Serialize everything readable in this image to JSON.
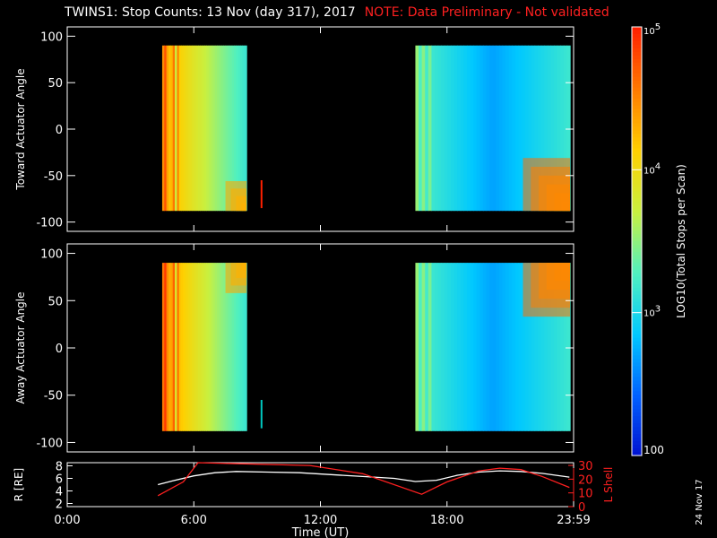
{
  "header": {
    "title": "TWINS1: Stop Counts: 13 Nov (day 317), 2017",
    "note": "NOTE: Data Preliminary - Not validated"
  },
  "side_stamp": "24 Nov 17",
  "colorbar": {
    "label": "LOG10(Total Stops per Scan)",
    "tick_labels": [
      "10^5",
      "10^4",
      "10^3",
      "100"
    ],
    "tick_values": [
      100000,
      10000,
      1000,
      100
    ],
    "scale": "log",
    "range": [
      100,
      100000
    ],
    "colormap": [
      "#0010d0",
      "#0060ff",
      "#00c8ff",
      "#50f0c0",
      "#c8f040",
      "#ffd000",
      "#ff7a00",
      "#ff2000"
    ]
  },
  "chart_data": [
    {
      "type": "heatmap",
      "ylabel": "Toward Actuator Angle",
      "ylim": [
        -110,
        110
      ],
      "yticks": [
        100,
        50,
        0,
        -50,
        -100
      ],
      "xlim_hours": [
        0,
        24
      ],
      "coverage": [
        {
          "start": "04:30",
          "end": "08:30",
          "angle_range": [
            -88,
            90
          ]
        },
        {
          "start": "16:30",
          "end": "23:50",
          "angle_range": [
            -88,
            90
          ]
        }
      ],
      "approx_counts": {
        "pass1_start": 30000,
        "pass1_end": 1500,
        "pass2_start": 2000,
        "pass2_middle": 500,
        "pass2_end_low_angle": 60000
      },
      "extra_strip": {
        "time": "09:10",
        "angle_range": [
          -85,
          -55
        ]
      }
    },
    {
      "type": "heatmap",
      "ylabel": "Away Actuator Angle",
      "ylim": [
        -110,
        110
      ],
      "yticks": [
        100,
        50,
        0,
        -50,
        -100
      ],
      "xlim_hours": [
        0,
        24
      ],
      "coverage": [
        {
          "start": "04:30",
          "end": "08:30",
          "angle_range": [
            -88,
            90
          ]
        },
        {
          "start": "16:30",
          "end": "23:50",
          "angle_range": [
            -88,
            90
          ]
        }
      ],
      "approx_counts": {
        "pass1_start": 40000,
        "pass1_end": 1500,
        "pass2_start": 2000,
        "pass2_middle": 500,
        "pass2_end_high_angle": 60000
      },
      "extra_strip": {
        "time": "09:10",
        "angle_range": [
          -85,
          -55
        ]
      }
    },
    {
      "type": "line",
      "xlabel": "Time (UT)",
      "xticks": [
        "0:00",
        "6:00",
        "12:00",
        "18:00",
        "23:59"
      ],
      "xtick_hours": [
        0,
        6,
        12,
        18,
        24
      ],
      "ylabel_left": "R [RE]",
      "ylabel_right": "L Shell",
      "yticks_left": [
        2,
        4,
        6,
        8
      ],
      "ylim_left": [
        1.5,
        8.5
      ],
      "yticks_right": [
        0,
        10,
        20,
        30
      ],
      "ylim_right": [
        0,
        32
      ],
      "series": [
        {
          "name": "R [RE]",
          "color": "#ffffff",
          "x": [
            4.3,
            5.0,
            6.0,
            7.0,
            8.0,
            9.5,
            11.0,
            12.5,
            14.0,
            15.5,
            16.5,
            17.5,
            18.5,
            19.5,
            20.5,
            21.5,
            22.5,
            23.8
          ],
          "y": [
            5.0,
            5.6,
            6.4,
            6.9,
            7.1,
            7.0,
            6.9,
            6.6,
            6.3,
            6.0,
            5.5,
            5.7,
            6.5,
            7.0,
            7.2,
            7.1,
            6.8,
            6.2
          ]
        },
        {
          "name": "L Shell",
          "color": "#ff2020",
          "x": [
            4.3,
            5.5,
            6.2,
            11.5,
            14.0,
            16.8,
            18.0,
            19.5,
            20.5,
            21.5,
            22.5,
            23.8
          ],
          "y": [
            8,
            18,
            32,
            30,
            24,
            9,
            18,
            26,
            28,
            27,
            22,
            14
          ]
        }
      ]
    }
  ]
}
